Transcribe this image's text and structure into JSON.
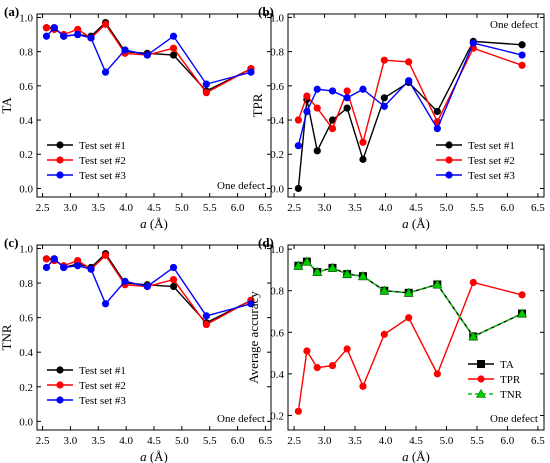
{
  "chart_data": [
    {
      "id": "a",
      "type": "line",
      "panel_label": "(a)",
      "ylabel": "TA",
      "xlabel_var": "a",
      "xlabel_unit": " (Å)",
      "xlim": [
        2.4,
        6.6
      ],
      "ylim": [
        -0.05,
        1.02
      ],
      "xticks": [
        "2.5",
        "3.0",
        "3.5",
        "4.0",
        "4.5",
        "5.0",
        "5.5",
        "6.0",
        "6.5"
      ],
      "xtick_values": [
        2.5,
        3.0,
        3.5,
        4.0,
        4.5,
        5.0,
        5.5,
        6.0,
        6.5
      ],
      "yticks": [
        "0.0",
        "0.2",
        "0.4",
        "0.6",
        "0.8",
        "1.0"
      ],
      "ytick_values": [
        0.0,
        0.2,
        0.4,
        0.6,
        0.8,
        1.0
      ],
      "x": [
        2.57,
        2.71,
        2.88,
        3.13,
        3.37,
        3.63,
        3.98,
        4.38,
        4.85,
        5.44,
        6.24
      ],
      "annotation": "One defect",
      "annotation_pos": "bottom-right",
      "legend_pos": "bottom-left",
      "series": [
        {
          "name": "Test set #1",
          "color": "#000000",
          "marker": "circle",
          "values": [
            0.94,
            0.94,
            0.89,
            0.9,
            0.89,
            0.97,
            0.8,
            0.79,
            0.78,
            0.57,
            0.7
          ]
        },
        {
          "name": "Test set #2",
          "color": "#ff0000",
          "marker": "circle",
          "values": [
            0.94,
            0.93,
            0.9,
            0.93,
            0.88,
            0.96,
            0.79,
            0.78,
            0.82,
            0.56,
            0.7
          ]
        },
        {
          "name": "Test set #3",
          "color": "#0000ff",
          "marker": "circle",
          "values": [
            0.89,
            0.94,
            0.89,
            0.9,
            0.88,
            0.68,
            0.81,
            0.78,
            0.89,
            0.61,
            0.68
          ]
        }
      ]
    },
    {
      "id": "b",
      "type": "line",
      "panel_label": "(b)",
      "ylabel": "TPR",
      "xlabel_var": "a",
      "xlabel_unit": " (Å)",
      "xlim": [
        2.4,
        6.6
      ],
      "ylim": [
        -0.05,
        1.02
      ],
      "xticks": [
        "2.5",
        "3.0",
        "3.5",
        "4.0",
        "4.5",
        "5.0",
        "5.5",
        "6.0",
        "6.5"
      ],
      "xtick_values": [
        2.5,
        3.0,
        3.5,
        4.0,
        4.5,
        5.0,
        5.5,
        6.0,
        6.5
      ],
      "yticks": [
        "0.0",
        "0.2",
        "0.4",
        "0.6",
        "0.8",
        "1.0"
      ],
      "ytick_values": [
        0.0,
        0.2,
        0.4,
        0.6,
        0.8,
        1.0
      ],
      "x": [
        2.57,
        2.71,
        2.88,
        3.13,
        3.37,
        3.63,
        3.98,
        4.38,
        4.85,
        5.44,
        6.24
      ],
      "x_series3": [
        2.57,
        2.71,
        2.88,
        3.13,
        3.37,
        3.63,
        3.98,
        4.38,
        4.85,
        5.44,
        6.24
      ],
      "annotation": "One defect",
      "annotation_pos": "top-right",
      "legend_pos": "bottom-right",
      "series": [
        {
          "name": "Test set #1",
          "color": "#000000",
          "marker": "circle",
          "values": [
            0.0,
            0.52,
            0.22,
            0.4,
            0.47,
            0.17,
            0.53,
            0.62,
            0.45,
            0.86,
            0.84
          ]
        },
        {
          "name": "Test set #2",
          "color": "#ff0000",
          "marker": "circle",
          "values": [
            0.4,
            0.54,
            0.47,
            0.35,
            0.57,
            0.27,
            0.75,
            0.74,
            0.39,
            0.82,
            0.72
          ]
        },
        {
          "name": "Test set #3",
          "color": "#0000ff",
          "marker": "circle",
          "values": [
            0.25,
            0.45,
            0.58,
            0.57,
            0.53,
            0.58,
            0.48,
            0.63,
            0.35,
            0.85,
            0.78
          ]
        }
      ]
    },
    {
      "id": "c",
      "type": "line",
      "panel_label": "(c)",
      "ylabel": "TNR",
      "xlabel_var": "a",
      "xlabel_unit": " (Å)",
      "xlim": [
        2.4,
        6.6
      ],
      "ylim": [
        -0.05,
        1.02
      ],
      "xticks": [
        "2.5",
        "3.0",
        "3.5",
        "4.0",
        "4.5",
        "5.0",
        "5.5",
        "6.0",
        "6.5"
      ],
      "xtick_values": [
        2.5,
        3.0,
        3.5,
        4.0,
        4.5,
        5.0,
        5.5,
        6.0,
        6.5
      ],
      "yticks": [
        "0.0",
        "0.2",
        "0.4",
        "0.6",
        "0.8",
        "1.0"
      ],
      "ytick_values": [
        0.0,
        0.2,
        0.4,
        0.6,
        0.8,
        1.0
      ],
      "x": [
        2.57,
        2.71,
        2.88,
        3.13,
        3.37,
        3.63,
        3.98,
        4.38,
        4.85,
        5.44,
        6.24
      ],
      "annotation": "One defect",
      "annotation_pos": "bottom-right",
      "legend_pos": "bottom-right",
      "series": [
        {
          "name": "Test set #1",
          "color": "#000000",
          "marker": "circle",
          "values": [
            0.94,
            0.94,
            0.89,
            0.91,
            0.89,
            0.97,
            0.8,
            0.79,
            0.78,
            0.57,
            0.7
          ]
        },
        {
          "name": "Test set #2",
          "color": "#ff0000",
          "marker": "circle",
          "values": [
            0.94,
            0.93,
            0.9,
            0.93,
            0.88,
            0.96,
            0.79,
            0.78,
            0.82,
            0.56,
            0.7
          ]
        },
        {
          "name": "Test set #3",
          "color": "#0000ff",
          "marker": "circle",
          "values": [
            0.89,
            0.94,
            0.89,
            0.9,
            0.88,
            0.68,
            0.81,
            0.78,
            0.89,
            0.61,
            0.68
          ]
        }
      ]
    },
    {
      "id": "d",
      "type": "line",
      "panel_label": "(d)",
      "ylabel": "Average accuracy",
      "xlabel_var": "a",
      "xlabel_unit": " (Å)",
      "xlim": [
        2.4,
        6.6
      ],
      "ylim": [
        0.13,
        1.02
      ],
      "xticks": [
        "2.5",
        "3.0",
        "3.5",
        "4.0",
        "4.5",
        "5.0",
        "5.5",
        "6.0",
        "6.5"
      ],
      "xtick_values": [
        2.5,
        3.0,
        3.5,
        4.0,
        4.5,
        5.0,
        5.5,
        6.0,
        6.5
      ],
      "yticks": [
        "0.2",
        "0.4",
        "0.6",
        "0.8",
        "1.0"
      ],
      "ytick_values": [
        0.2,
        0.4,
        0.6,
        0.8,
        1.0
      ],
      "x": [
        2.57,
        2.71,
        2.88,
        3.13,
        3.37,
        3.63,
        3.98,
        4.38,
        4.85,
        5.44,
        6.24
      ],
      "annotation": "One defect",
      "annotation_pos": "bottom-right",
      "legend_pos": "bottom-right",
      "series": [
        {
          "name": "TA",
          "color": "#000000",
          "marker": "square",
          "dash": false,
          "values": [
            0.92,
            0.94,
            0.89,
            0.91,
            0.88,
            0.87,
            0.8,
            0.79,
            0.83,
            0.58,
            0.69
          ]
        },
        {
          "name": "TPR",
          "color": "#ff0000",
          "marker": "circle",
          "dash": false,
          "values": [
            0.22,
            0.51,
            0.43,
            0.44,
            0.52,
            0.34,
            0.59,
            0.67,
            0.4,
            0.84,
            0.78
          ]
        },
        {
          "name": "TNR",
          "color": "#00cc00",
          "marker": "triangle",
          "dash": true,
          "values": [
            0.92,
            0.94,
            0.89,
            0.91,
            0.88,
            0.87,
            0.8,
            0.79,
            0.83,
            0.58,
            0.69
          ]
        }
      ]
    }
  ]
}
